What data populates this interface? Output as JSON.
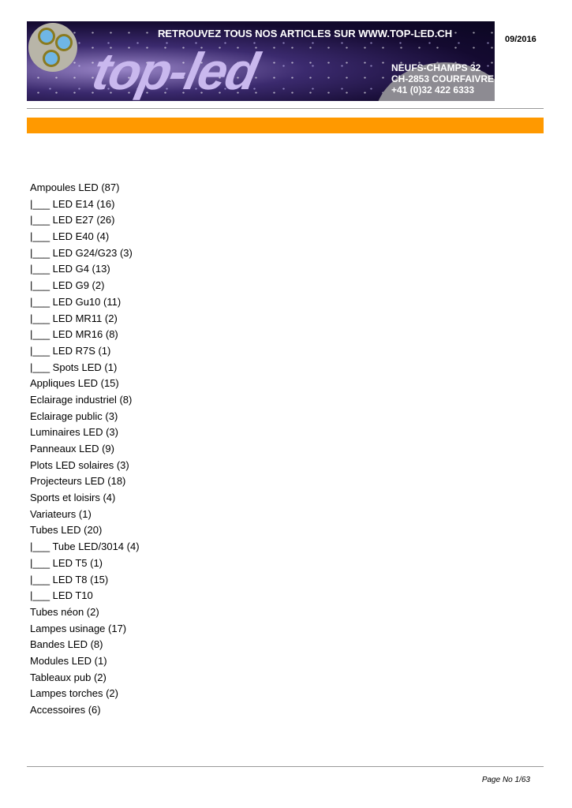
{
  "header": {
    "banner": {
      "headline": "RETROUVEZ TOUS NOS ARTICLES SUR WWW.TOP-LED.CH",
      "logo": "top-led",
      "address": [
        "NEUFS-CHAMPS 32",
        "CH-2853 COURFAIVRE",
        "+41 (0)32 422 6333"
      ]
    },
    "date": "09/2016",
    "accent_color": "#ff9900"
  },
  "categories": [
    "Ampoules LED (87)",
    "|___ LED E14 (16)",
    "|___ LED E27 (26)",
    "|___ LED E40 (4)",
    "|___ LED G24/G23 (3)",
    "|___ LED G4 (13)",
    "|___ LED G9 (2)",
    "|___ LED Gu10 (11)",
    "|___ LED MR11 (2)",
    "|___ LED MR16 (8)",
    "|___ LED R7S (1)",
    "|___ Spots LED (1)",
    "Appliques LED (15)",
    "Eclairage industriel (8)",
    "Eclairage public (3)",
    "Luminaires LED (3)",
    "Panneaux LED (9)",
    "Plots LED solaires (3)",
    "Projecteurs LED (18)",
    "Sports et loisirs (4)",
    "Variateurs (1)",
    "Tubes LED (20)",
    "|___ Tube LED/3014 (4)",
    "|___ LED T5 (1)",
    "|___ LED T8 (15)",
    "|___ LED T10",
    "Tubes néon (2)",
    "Lampes usinage (17)",
    "Bandes LED (8)",
    "Modules LED (1)",
    "Tableaux pub (2)",
    "Lampes torches (2)",
    "Accessoires (6)"
  ],
  "footer": {
    "page": "Page No 1/63"
  }
}
